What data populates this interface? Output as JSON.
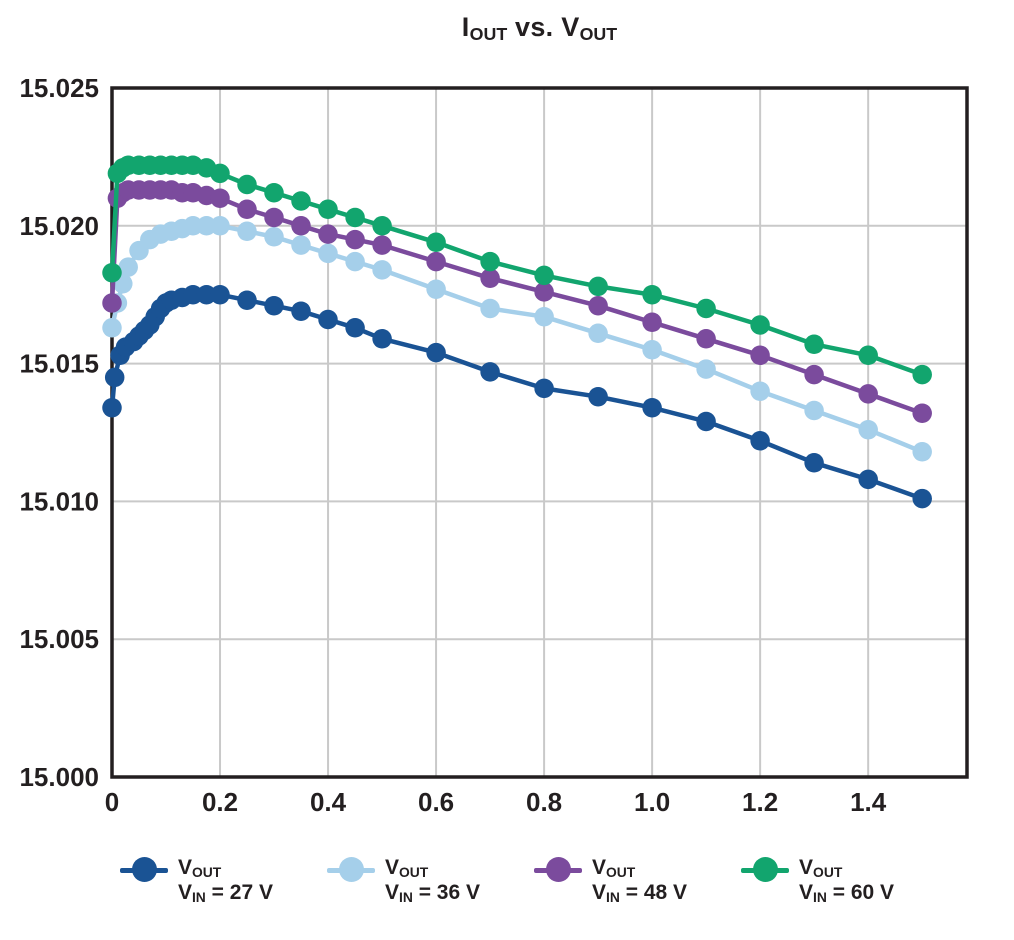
{
  "title": {
    "part1": "I",
    "part1_sub": "OUT",
    "part2": " vs. V",
    "part2_sub": "OUT"
  },
  "colors": {
    "text": "#231f20",
    "frame": "#231f20",
    "grid": "#c9c9c9",
    "background": "#ffffff",
    "series_27v": "#1a5394",
    "series_36v": "#a5cfea",
    "series_48v": "#7b4b9d",
    "series_60v": "#12a56e"
  },
  "chart_data": {
    "type": "line",
    "title": "IOUT vs. VOUT",
    "xlabel": "",
    "ylabel": "",
    "xlim": [
      0,
      1.583
    ],
    "ylim": [
      15.0,
      15.025
    ],
    "grid": true,
    "legend_position": "bottom",
    "xticks": [
      {
        "v": 0.0,
        "label": "0"
      },
      {
        "v": 0.2,
        "label": "0.2"
      },
      {
        "v": 0.4,
        "label": "0.4"
      },
      {
        "v": 0.6,
        "label": "0.6"
      },
      {
        "v": 0.8,
        "label": "0.8"
      },
      {
        "v": 1.0,
        "label": "1.0"
      },
      {
        "v": 1.2,
        "label": "1.2"
      },
      {
        "v": 1.4,
        "label": "1.4"
      }
    ],
    "yticks": [
      {
        "v": 15.0,
        "label": "15.000"
      },
      {
        "v": 15.005,
        "label": "15.005"
      },
      {
        "v": 15.01,
        "label": "15.010"
      },
      {
        "v": 15.015,
        "label": "15.015"
      },
      {
        "v": 15.02,
        "label": "15.020"
      },
      {
        "v": 15.025,
        "label": "15.025"
      }
    ],
    "series": [
      {
        "id": "vin-27",
        "name": "VOUT, VIN = 27 V",
        "color": "#1a5394",
        "points": [
          [
            0,
            15.0134
          ],
          [
            0.005,
            15.0145
          ],
          [
            0.015,
            15.0153
          ],
          [
            0.025,
            15.0156
          ],
          [
            0.04,
            15.0158
          ],
          [
            0.05,
            15.016
          ],
          [
            0.06,
            15.0162
          ],
          [
            0.07,
            15.0164
          ],
          [
            0.08,
            15.0167
          ],
          [
            0.09,
            15.017
          ],
          [
            0.1,
            15.0172
          ],
          [
            0.11,
            15.0173
          ],
          [
            0.13,
            15.0174
          ],
          [
            0.15,
            15.0175
          ],
          [
            0.175,
            15.0175
          ],
          [
            0.2,
            15.0175
          ],
          [
            0.25,
            15.0173
          ],
          [
            0.3,
            15.0171
          ],
          [
            0.35,
            15.0169
          ],
          [
            0.4,
            15.0166
          ],
          [
            0.45,
            15.0163
          ],
          [
            0.5,
            15.0159
          ],
          [
            0.6,
            15.0154
          ],
          [
            0.7,
            15.0147
          ],
          [
            0.8,
            15.0141
          ],
          [
            0.9,
            15.0138
          ],
          [
            1.0,
            15.0134
          ],
          [
            1.1,
            15.0129
          ],
          [
            1.2,
            15.0122
          ],
          [
            1.3,
            15.0114
          ],
          [
            1.4,
            15.0108
          ],
          [
            1.5,
            15.0101
          ]
        ]
      },
      {
        "id": "vin-36",
        "name": "VOUT, VIN = 36 V",
        "color": "#a5cfea",
        "points": [
          [
            0,
            15.0163
          ],
          [
            0.01,
            15.0172
          ],
          [
            0.02,
            15.0179
          ],
          [
            0.03,
            15.0185
          ],
          [
            0.05,
            15.0191
          ],
          [
            0.07,
            15.0195
          ],
          [
            0.09,
            15.0197
          ],
          [
            0.11,
            15.0198
          ],
          [
            0.13,
            15.0199
          ],
          [
            0.15,
            15.02
          ],
          [
            0.175,
            15.02
          ],
          [
            0.2,
            15.02
          ],
          [
            0.25,
            15.0198
          ],
          [
            0.3,
            15.0196
          ],
          [
            0.35,
            15.0193
          ],
          [
            0.4,
            15.019
          ],
          [
            0.45,
            15.0187
          ],
          [
            0.5,
            15.0184
          ],
          [
            0.6,
            15.0177
          ],
          [
            0.7,
            15.017
          ],
          [
            0.8,
            15.0167
          ],
          [
            0.9,
            15.0161
          ],
          [
            1.0,
            15.0155
          ],
          [
            1.1,
            15.0148
          ],
          [
            1.2,
            15.014
          ],
          [
            1.3,
            15.0133
          ],
          [
            1.4,
            15.0126
          ],
          [
            1.5,
            15.0118
          ]
        ]
      },
      {
        "id": "vin-48",
        "name": "VOUT, VIN = 48 V",
        "color": "#7b4b9d",
        "points": [
          [
            0,
            15.0172
          ],
          [
            0.01,
            15.021
          ],
          [
            0.02,
            15.0212
          ],
          [
            0.03,
            15.0213
          ],
          [
            0.05,
            15.0213
          ],
          [
            0.07,
            15.0213
          ],
          [
            0.09,
            15.0213
          ],
          [
            0.11,
            15.0213
          ],
          [
            0.13,
            15.0212
          ],
          [
            0.15,
            15.0212
          ],
          [
            0.175,
            15.0211
          ],
          [
            0.2,
            15.021
          ],
          [
            0.25,
            15.0206
          ],
          [
            0.3,
            15.0203
          ],
          [
            0.35,
            15.02
          ],
          [
            0.4,
            15.0197
          ],
          [
            0.45,
            15.0195
          ],
          [
            0.5,
            15.0193
          ],
          [
            0.6,
            15.0187
          ],
          [
            0.7,
            15.0181
          ],
          [
            0.8,
            15.0176
          ],
          [
            0.9,
            15.0171
          ],
          [
            1.0,
            15.0165
          ],
          [
            1.1,
            15.0159
          ],
          [
            1.2,
            15.0153
          ],
          [
            1.3,
            15.0146
          ],
          [
            1.4,
            15.0139
          ],
          [
            1.5,
            15.0132
          ]
        ]
      },
      {
        "id": "vin-60",
        "name": "VOUT, VIN = 60 V",
        "color": "#12a56e",
        "points": [
          [
            0,
            15.0183
          ],
          [
            0.01,
            15.0219
          ],
          [
            0.02,
            15.0221
          ],
          [
            0.03,
            15.0222
          ],
          [
            0.05,
            15.0222
          ],
          [
            0.07,
            15.0222
          ],
          [
            0.09,
            15.0222
          ],
          [
            0.11,
            15.0222
          ],
          [
            0.13,
            15.0222
          ],
          [
            0.15,
            15.0222
          ],
          [
            0.175,
            15.0221
          ],
          [
            0.2,
            15.0219
          ],
          [
            0.25,
            15.0215
          ],
          [
            0.3,
            15.0212
          ],
          [
            0.35,
            15.0209
          ],
          [
            0.4,
            15.0206
          ],
          [
            0.45,
            15.0203
          ],
          [
            0.5,
            15.02
          ],
          [
            0.6,
            15.0194
          ],
          [
            0.7,
            15.0187
          ],
          [
            0.8,
            15.0182
          ],
          [
            0.9,
            15.0178
          ],
          [
            1.0,
            15.0175
          ],
          [
            1.1,
            15.017
          ],
          [
            1.2,
            15.0164
          ],
          [
            1.3,
            15.0157
          ],
          [
            1.4,
            15.0153
          ],
          [
            1.5,
            15.0146
          ]
        ]
      }
    ]
  },
  "legend": {
    "position": "bottom",
    "items": [
      {
        "id": "vin-27",
        "color": "#1a5394",
        "main": "V",
        "main_sub": "OUT",
        "line2_main": "V",
        "line2_sub": "IN",
        "line2_rest": " = 27 V"
      },
      {
        "id": "vin-36",
        "color": "#a5cfea",
        "main": "V",
        "main_sub": "OUT",
        "line2_main": "V",
        "line2_sub": "IN",
        "line2_rest": " = 36 V"
      },
      {
        "id": "vin-48",
        "color": "#7b4b9d",
        "main": "V",
        "main_sub": "OUT",
        "line2_main": "V",
        "line2_sub": "IN",
        "line2_rest": " = 48 V"
      },
      {
        "id": "vin-60",
        "color": "#12a56e",
        "main": "V",
        "main_sub": "OUT",
        "line2_main": "V",
        "line2_sub": "IN",
        "line2_rest": " = 60 V"
      }
    ]
  }
}
